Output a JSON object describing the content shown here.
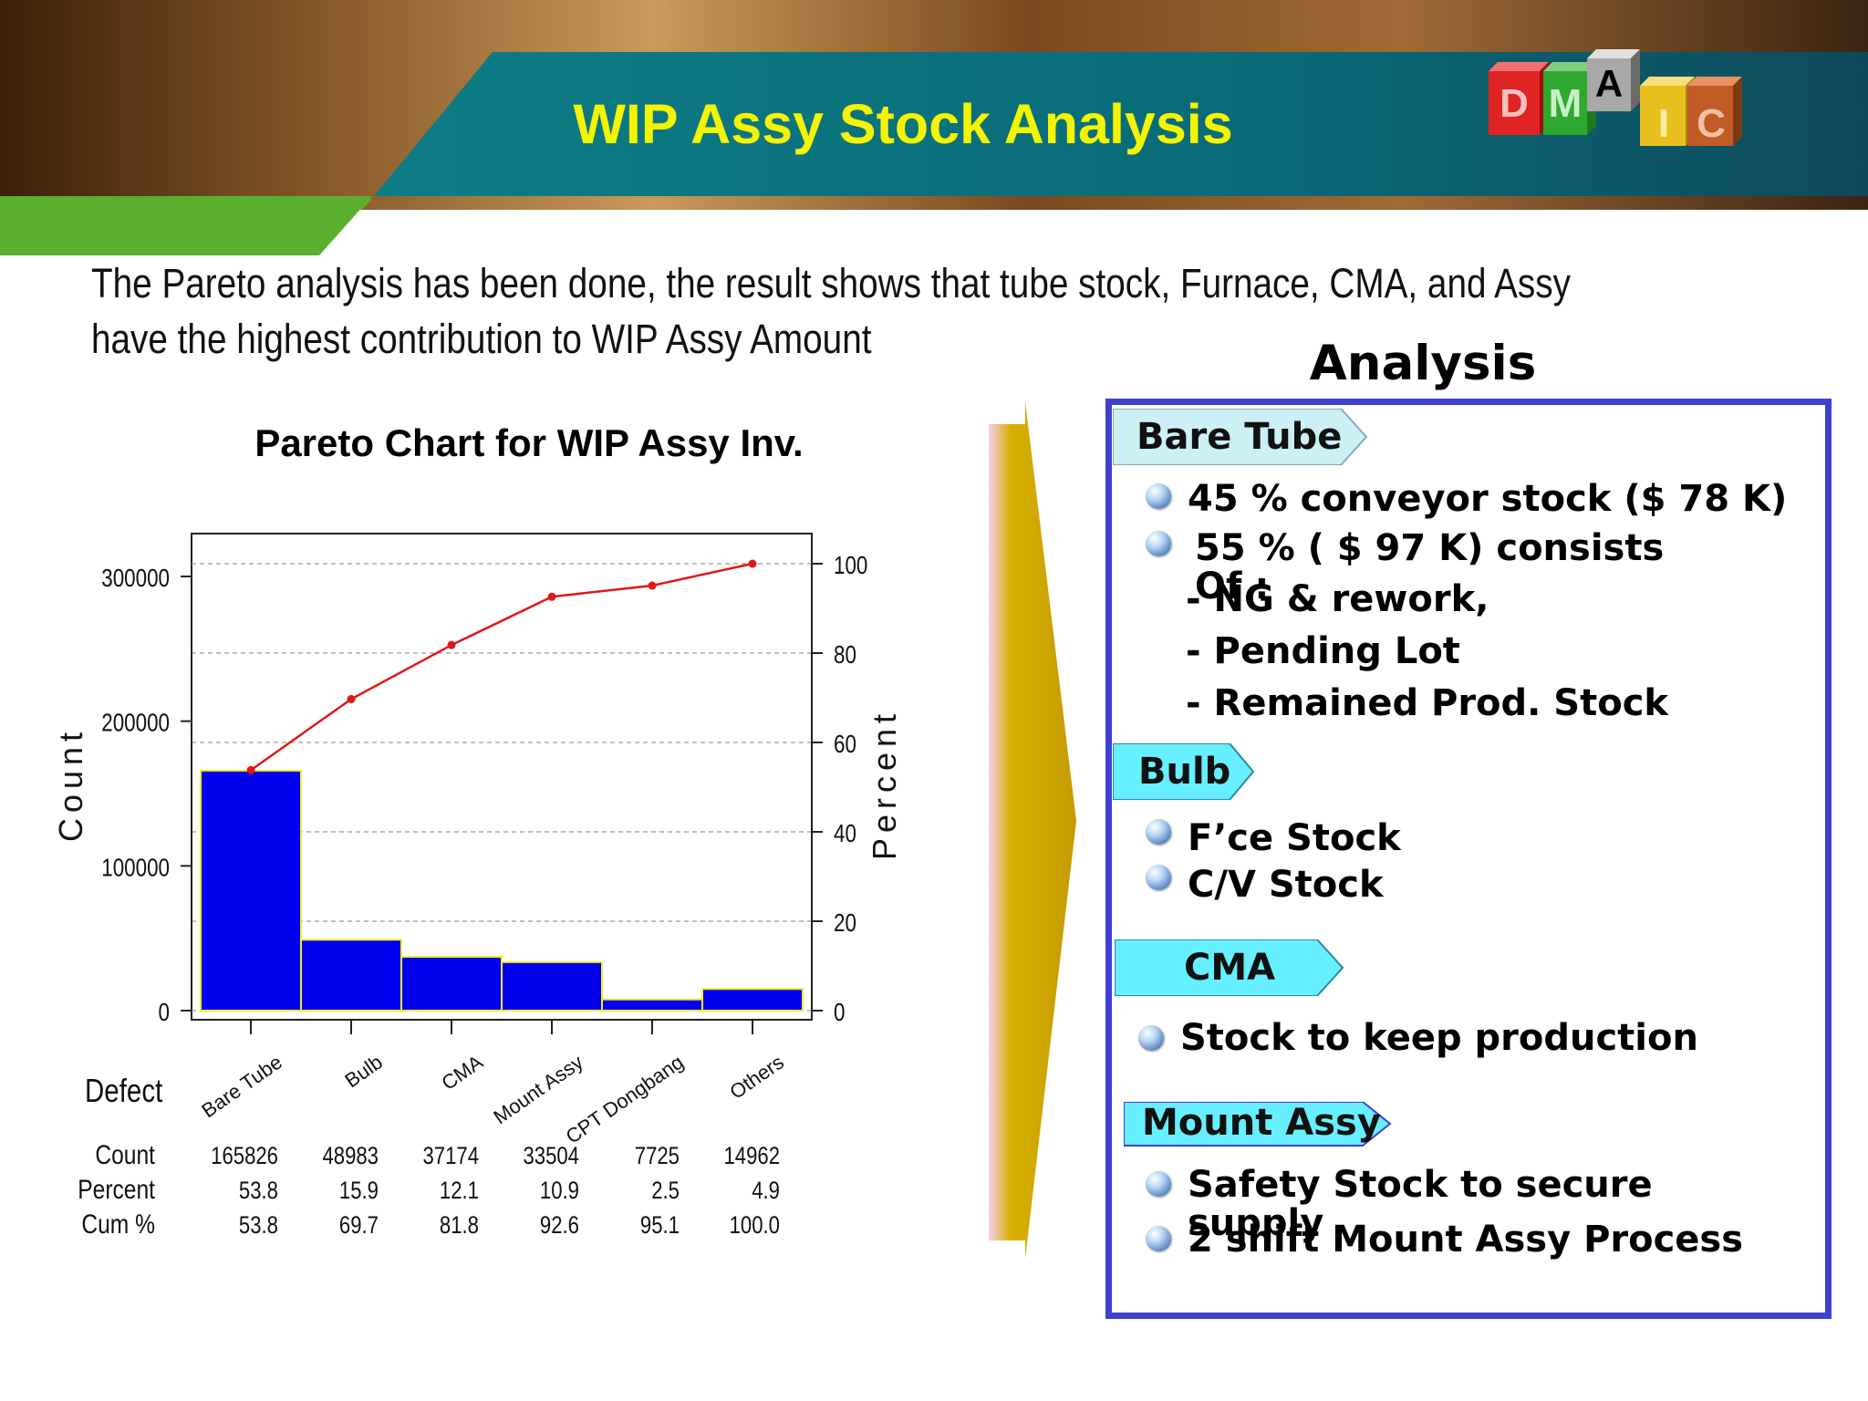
{
  "slide": {
    "title": "WIP Assy Stock Analysis",
    "intro_line1": "The Pareto analysis has been done, the result shows that tube stock, Furnace, CMA, and Assy",
    "intro_line2": "have the highest contribution to WIP Assy Amount",
    "logo_letters": [
      "D",
      "M",
      "A",
      "I",
      "C"
    ]
  },
  "chart_data": {
    "type": "bar",
    "title": "Pareto Chart for WIP Assy Inv.",
    "ylabel": "Count",
    "y2label": "Percent",
    "ylim": [
      0,
      330000
    ],
    "y2lim": [
      0,
      100
    ],
    "yticks": [
      "0",
      "100000",
      "200000",
      "300000"
    ],
    "y2ticks": [
      "0",
      "20",
      "40",
      "60",
      "80",
      "100"
    ],
    "categories": [
      "Bare Tube",
      "Bulb",
      "CMA",
      "Mount Assy",
      "CPT Dongbang",
      "Others"
    ],
    "series": [
      {
        "name": "Count",
        "values": [
          165826,
          48983,
          37174,
          33504,
          7725,
          14962
        ]
      },
      {
        "name": "Cum %",
        "values": [
          53.8,
          69.7,
          81.8,
          92.6,
          95.1,
          100.0
        ]
      }
    ],
    "table": {
      "category_header": "Defect",
      "rows": [
        {
          "label": "Count",
          "values": [
            "165826",
            "48983",
            "37174",
            "33504",
            "7725",
            "14962"
          ]
        },
        {
          "label": "Percent",
          "values": [
            "53.8",
            "15.9",
            "12.1",
            "10.9",
            "2.5",
            "4.9"
          ]
        },
        {
          "label": "Cum %",
          "values": [
            "53.8",
            "69.7",
            "81.8",
            "92.6",
            "95.1",
            "100.0"
          ]
        }
      ]
    },
    "bar_color": "#0000ee",
    "line_color": "#e01818",
    "grid": true
  },
  "analysis": {
    "title": "Analysis",
    "sections": [
      {
        "tag": "Bare Tube",
        "lines": [
          "45 % conveyor stock ($ 78 K)",
          "55 %  ( $ 97 K) consists",
          "Of :",
          "- NG & rework,",
          "- Pending Lot",
          "- Remained Prod. Stock"
        ]
      },
      {
        "tag": "Bulb",
        "lines": [
          "F’ce Stock",
          "C/V Stock"
        ]
      },
      {
        "tag": "CMA",
        "lines": [
          "Stock to keep production"
        ]
      },
      {
        "tag": "Mount Assy",
        "lines": [
          "Safety Stock to secure",
          "supply",
          "2 shift Mount Assy Process"
        ]
      }
    ]
  },
  "colors": {
    "title_yellow": "#f4f400",
    "teal": "#0a6e7a",
    "green": "#5ab02e",
    "box_border": "#3f3fd0",
    "tag_fill": "#66f0ff",
    "arrow_gold": "#c9a000"
  }
}
